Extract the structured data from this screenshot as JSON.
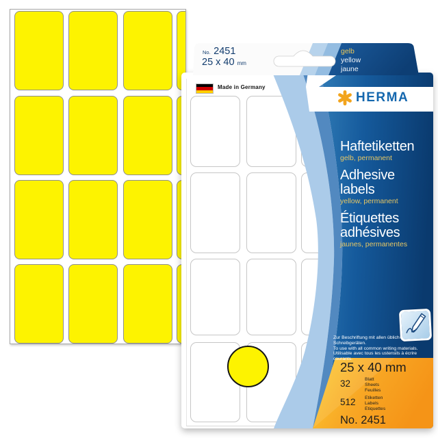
{
  "package": {
    "tab": {
      "no_prefix": "No.",
      "number": "2451",
      "size": "25 x 40",
      "size_unit": "mm",
      "color_names": {
        "de": "gelb",
        "en": "yellow",
        "fr": "jaune"
      }
    },
    "brand": {
      "name": "HERMA"
    },
    "origin": "Made in Germany",
    "product_titles": [
      {
        "title": "Haftetiketten",
        "subtitle": "gelb, permanent"
      },
      {
        "title": "Adhesive labels",
        "subtitle": "yellow, permanent"
      },
      {
        "title": "Étiquettes adhésives",
        "subtitle": "jaunes, permanentes"
      }
    ],
    "usage_notes": [
      "Zur Beschriftung mit allen üblichen Schreibgeräten.",
      "To use with all common writing materials.",
      "Utilisable avec tous les ustensils à écrire courants."
    ],
    "specs": {
      "size": "25 x 40 mm",
      "sheet_count": "32",
      "sheet_unit_labels": [
        "Blatt",
        "Sheets",
        "Feuilles"
      ],
      "label_count": "512",
      "label_unit_labels": [
        "Etiketten",
        "Labels",
        "Etiquettes"
      ],
      "order_number": "No. 2451"
    }
  },
  "icons": {
    "brand_star": "six-armed orange asterisk",
    "pencil": "pencil writing a squiggle",
    "germany_flag": "black-red-gold tricolor",
    "euro_slot": "hanging hole cutout"
  },
  "colors": {
    "label_yellow": "#fdf300",
    "brand_orange": "#f2a41d",
    "brand_blue": "#1467ae",
    "panel_blue_light": "#2f7ab5",
    "panel_blue_dark": "#0a3a6e",
    "swoosh_light": "#abcbe9",
    "swoosh_medium": "#5289c0",
    "spec_box_yellow": "#fdcd33",
    "spec_box_orange": "#f59417",
    "subtitle_gold": "#e5c664"
  },
  "left_sheet": {
    "rows": 4,
    "cols": 4
  },
  "window_sheet": {
    "rows": 4,
    "cols": 3
  }
}
